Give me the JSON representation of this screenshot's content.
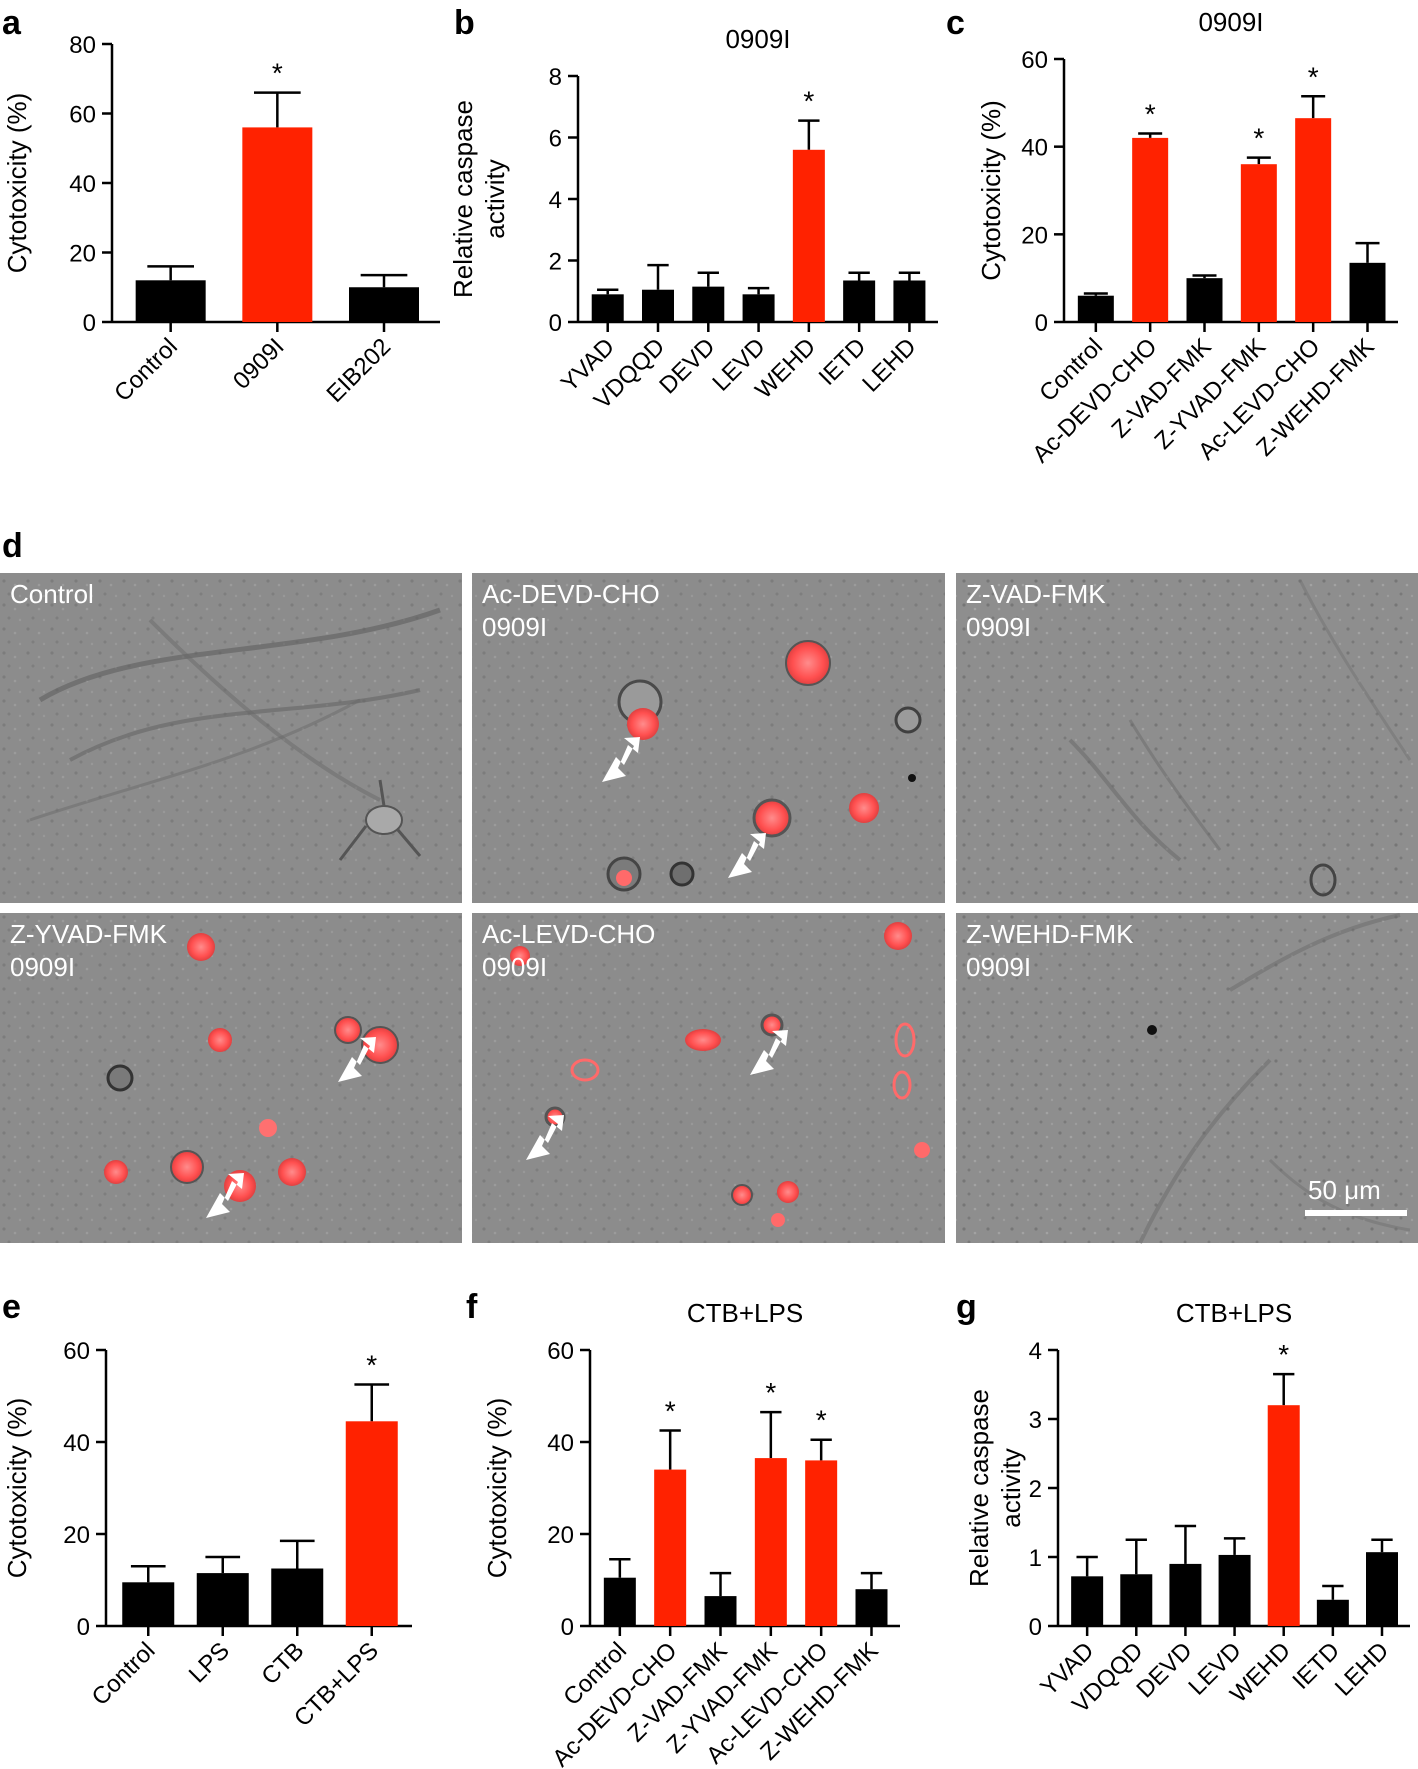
{
  "figure": {
    "panel_letters": [
      "a",
      "b",
      "c",
      "d",
      "e",
      "f",
      "g"
    ],
    "colors": {
      "control_bar": "#000000",
      "highlight_bar": "#ff2200",
      "micro_background": "#8c8c8c",
      "fluorescence": "#ff5a5a",
      "label_text": "#ffffff"
    }
  },
  "chart_data": [
    {
      "panel": "a",
      "type": "bar",
      "title": "",
      "xlabel": "",
      "ylabel": "Cytotoxicity (%)",
      "ylim": [
        0,
        80
      ],
      "yticks": [
        0,
        20,
        40,
        60,
        80
      ],
      "categories": [
        "Control",
        "0909I",
        "EIB202"
      ],
      "values": [
        12,
        56,
        10
      ],
      "errors": [
        4,
        10,
        3.5
      ],
      "highlight": [
        false,
        true,
        false
      ],
      "significant": [
        false,
        true,
        false
      ]
    },
    {
      "panel": "b",
      "type": "bar",
      "title": "0909I",
      "xlabel": "",
      "ylabel": "Relative caspase activity",
      "ylim": [
        0,
        8
      ],
      "yticks": [
        0,
        2,
        4,
        6,
        8
      ],
      "categories": [
        "YVAD",
        "VDQQD",
        "DEVD",
        "LEVD",
        "WEHD",
        "IETD",
        "LEHD"
      ],
      "values": [
        0.9,
        1.05,
        1.15,
        0.9,
        5.6,
        1.35,
        1.35
      ],
      "errors": [
        0.15,
        0.8,
        0.45,
        0.2,
        0.95,
        0.25,
        0.25
      ],
      "highlight": [
        false,
        false,
        false,
        false,
        true,
        false,
        false
      ],
      "significant": [
        false,
        false,
        false,
        false,
        true,
        false,
        false
      ]
    },
    {
      "panel": "c",
      "type": "bar",
      "title": "0909I",
      "xlabel": "",
      "ylabel": "Cytotoxicity (%)",
      "ylim": [
        0,
        60
      ],
      "yticks": [
        0,
        20,
        40,
        60
      ],
      "categories": [
        "Control",
        "Ac-DEVD-CHO",
        "Z-VAD-FMK",
        "Z-YVAD-FMK",
        "Ac-LEVD-CHO",
        "Z-WEHD-FMK"
      ],
      "values": [
        6,
        42,
        10,
        36,
        46.5,
        13.5
      ],
      "errors": [
        0.5,
        1,
        0.6,
        1.5,
        5,
        4.5
      ],
      "highlight": [
        false,
        true,
        false,
        true,
        true,
        false
      ],
      "significant": [
        false,
        true,
        false,
        true,
        true,
        false
      ]
    },
    {
      "panel": "e",
      "type": "bar",
      "title": "",
      "xlabel": "",
      "ylabel": "Cytotoxicity (%)",
      "ylim": [
        0,
        60
      ],
      "yticks": [
        0,
        20,
        40,
        60
      ],
      "categories": [
        "Control",
        "LPS",
        "CTB",
        "CTB+LPS"
      ],
      "values": [
        9.5,
        11.5,
        12.5,
        44.5
      ],
      "errors": [
        3.5,
        3.5,
        6,
        8
      ],
      "highlight": [
        false,
        false,
        false,
        true
      ],
      "significant": [
        false,
        false,
        false,
        true
      ]
    },
    {
      "panel": "f",
      "type": "bar",
      "title": "CTB+LPS",
      "xlabel": "",
      "ylabel": "Cytotoxicity (%)",
      "ylim": [
        0,
        60
      ],
      "yticks": [
        0,
        20,
        40,
        60
      ],
      "categories": [
        "Control",
        "Ac-DEVD-CHO",
        "Z-VAD-FMK",
        "Z-YVAD-FMK",
        "Ac-LEVD-CHO",
        "Z-WEHD-FMK"
      ],
      "values": [
        10.5,
        34,
        6.5,
        36.5,
        36,
        8
      ],
      "errors": [
        4,
        8.5,
        5,
        10,
        4.5,
        3.5
      ],
      "highlight": [
        false,
        true,
        false,
        true,
        true,
        false
      ],
      "significant": [
        false,
        true,
        false,
        true,
        true,
        false
      ]
    },
    {
      "panel": "g",
      "type": "bar",
      "title": "CTB+LPS",
      "xlabel": "",
      "ylabel": "Relative caspase activity",
      "ylim": [
        0,
        4
      ],
      "yticks": [
        0,
        1,
        2,
        3,
        4
      ],
      "categories": [
        "YVAD",
        "VDQQD",
        "DEVD",
        "LEVD",
        "WEHD",
        "IETD",
        "LEHD"
      ],
      "values": [
        0.72,
        0.75,
        0.9,
        1.03,
        3.2,
        0.38,
        1.07
      ],
      "errors": [
        0.28,
        0.5,
        0.55,
        0.24,
        0.45,
        0.2,
        0.18
      ],
      "highlight": [
        false,
        false,
        false,
        false,
        true,
        false,
        false
      ],
      "significant": [
        false,
        false,
        false,
        false,
        true,
        false,
        false
      ]
    }
  ],
  "micrographs": [
    {
      "label": "Control",
      "sub": ""
    },
    {
      "label": "Ac-DEVD-CHO",
      "sub": "0909I"
    },
    {
      "label": "Z-VAD-FMK",
      "sub": "0909I"
    },
    {
      "label": "Z-YVAD-FMK",
      "sub": "0909I"
    },
    {
      "label": "Ac-LEVD-CHO",
      "sub": "0909I"
    },
    {
      "label": "Z-WEHD-FMK",
      "sub": "0909I"
    }
  ],
  "scale_bar": "50 μm"
}
